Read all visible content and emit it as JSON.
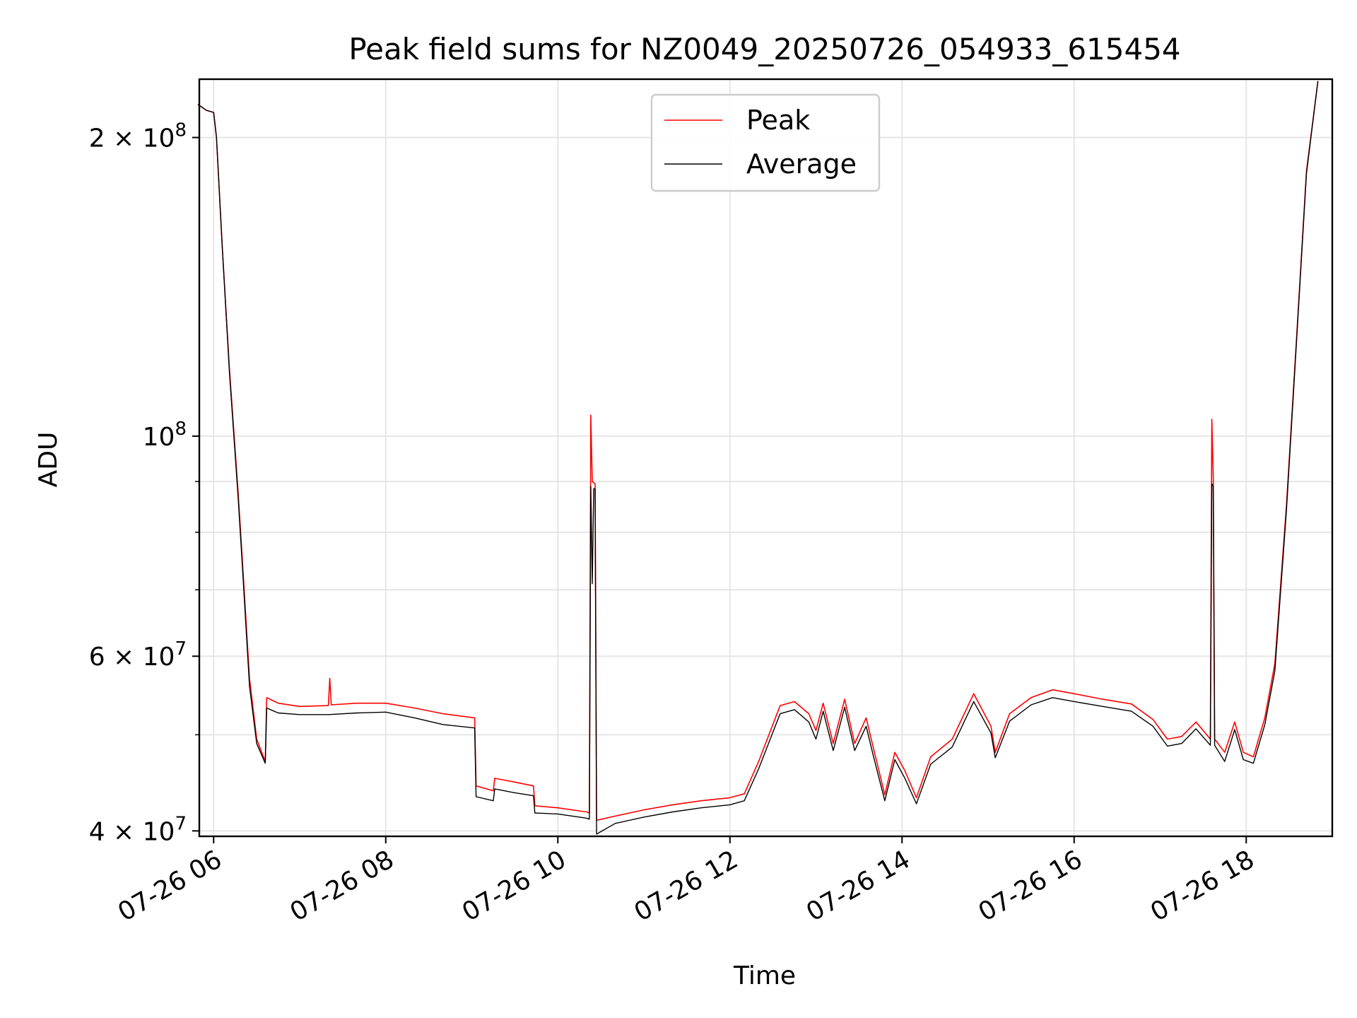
{
  "chart_data": {
    "type": "line",
    "title": "Peak field sums for NZ0049_20250726_054933_615454",
    "xlabel": "Time",
    "ylabel": "ADU",
    "yscale": "log",
    "grid": true,
    "legend_position": "upper center",
    "xlim": [
      "2025-07-26 05:50",
      "2025-07-26 19:00"
    ],
    "ylim": [
      39500000,
      229000000
    ],
    "x_ticks": [
      {
        "value": "2025-07-26 06:00",
        "label": "07-26 06"
      },
      {
        "value": "2025-07-26 08:00",
        "label": "07-26 08"
      },
      {
        "value": "2025-07-26 10:00",
        "label": "07-26 10"
      },
      {
        "value": "2025-07-26 12:00",
        "label": "07-26 12"
      },
      {
        "value": "2025-07-26 14:00",
        "label": "07-26 14"
      },
      {
        "value": "2025-07-26 16:00",
        "label": "07-26 16"
      },
      {
        "value": "2025-07-26 18:00",
        "label": "07-26 18"
      }
    ],
    "y_major_ticks": [
      {
        "value": 40000000,
        "base": "4 × 10",
        "exp": "7"
      },
      {
        "value": 60000000,
        "base": "6 × 10",
        "exp": "7"
      },
      {
        "value": 100000000,
        "base": "10",
        "exp": "8"
      },
      {
        "value": 200000000,
        "base": "2 × 10",
        "exp": "8"
      }
    ],
    "y_minor_ticks": [
      50000000,
      70000000,
      80000000,
      90000000
    ],
    "series": [
      {
        "name": "Peak",
        "color": "#ff0000",
        "points": [
          [
            "2025-07-26 05:49",
            216000000
          ],
          [
            "2025-07-26 05:55",
            213000000
          ],
          [
            "2025-07-26 06:00",
            212000000
          ],
          [
            "2025-07-26 06:02",
            200000000
          ],
          [
            "2025-07-26 06:06",
            155000000
          ],
          [
            "2025-07-26 06:11",
            117000000
          ],
          [
            "2025-07-26 06:17",
            88000000
          ],
          [
            "2025-07-26 06:20",
            75000000
          ],
          [
            "2025-07-26 06:25",
            57000000
          ],
          [
            "2025-07-26 06:30",
            49500000
          ],
          [
            "2025-07-26 06:36",
            47000000
          ],
          [
            "2025-07-26 06:37",
            54500000
          ],
          [
            "2025-07-26 06:45",
            53800000
          ],
          [
            "2025-07-26 07:00",
            53400000
          ],
          [
            "2025-07-26 07:20",
            53500000
          ],
          [
            "2025-07-26 07:21",
            57000000
          ],
          [
            "2025-07-26 07:22",
            53600000
          ],
          [
            "2025-07-26 07:40",
            53800000
          ],
          [
            "2025-07-26 08:00",
            53800000
          ],
          [
            "2025-07-26 08:20",
            53200000
          ],
          [
            "2025-07-26 08:40",
            52500000
          ],
          [
            "2025-07-26 09:02",
            52000000
          ],
          [
            "2025-07-26 09:03",
            44400000
          ],
          [
            "2025-07-26 09:15",
            43900000
          ],
          [
            "2025-07-26 09:16",
            45200000
          ],
          [
            "2025-07-26 09:30",
            44800000
          ],
          [
            "2025-07-26 09:43",
            44400000
          ],
          [
            "2025-07-26 09:44",
            42400000
          ],
          [
            "2025-07-26 10:00",
            42200000
          ],
          [
            "2025-07-26 10:20",
            41800000
          ],
          [
            "2025-07-26 10:22",
            41700000
          ],
          [
            "2025-07-26 10:23",
            105000000
          ],
          [
            "2025-07-26 10:24",
            90000000
          ],
          [
            "2025-07-26 10:26",
            89500000
          ],
          [
            "2025-07-26 10:27",
            41000000
          ],
          [
            "2025-07-26 10:40",
            41400000
          ],
          [
            "2025-07-26 11:00",
            42000000
          ],
          [
            "2025-07-26 11:20",
            42500000
          ],
          [
            "2025-07-26 11:40",
            42900000
          ],
          [
            "2025-07-26 12:00",
            43200000
          ],
          [
            "2025-07-26 12:10",
            43600000
          ],
          [
            "2025-07-26 12:20",
            47000000
          ],
          [
            "2025-07-26 12:35",
            53500000
          ],
          [
            "2025-07-26 12:45",
            54000000
          ],
          [
            "2025-07-26 12:55",
            52500000
          ],
          [
            "2025-07-26 13:00",
            50500000
          ],
          [
            "2025-07-26 13:05",
            53800000
          ],
          [
            "2025-07-26 13:12",
            49000000
          ],
          [
            "2025-07-26 13:20",
            54300000
          ],
          [
            "2025-07-26 13:27",
            49000000
          ],
          [
            "2025-07-26 13:35",
            52000000
          ],
          [
            "2025-07-26 13:40",
            48500000
          ],
          [
            "2025-07-26 13:48",
            43500000
          ],
          [
            "2025-07-26 13:55",
            48000000
          ],
          [
            "2025-07-26 14:02",
            46000000
          ],
          [
            "2025-07-26 14:10",
            43200000
          ],
          [
            "2025-07-26 14:20",
            47500000
          ],
          [
            "2025-07-26 14:35",
            49500000
          ],
          [
            "2025-07-26 14:50",
            55000000
          ],
          [
            "2025-07-26 15:02",
            51000000
          ],
          [
            "2025-07-26 15:05",
            48000000
          ],
          [
            "2025-07-26 15:15",
            52500000
          ],
          [
            "2025-07-26 15:30",
            54500000
          ],
          [
            "2025-07-26 15:45",
            55500000
          ],
          [
            "2025-07-26 16:00",
            55000000
          ],
          [
            "2025-07-26 16:20",
            54300000
          ],
          [
            "2025-07-26 16:40",
            53700000
          ],
          [
            "2025-07-26 16:55",
            51800000
          ],
          [
            "2025-07-26 17:05",
            49500000
          ],
          [
            "2025-07-26 17:15",
            49800000
          ],
          [
            "2025-07-26 17:25",
            51500000
          ],
          [
            "2025-07-26 17:35",
            49500000
          ],
          [
            "2025-07-26 17:36",
            104000000
          ],
          [
            "2025-07-26 17:37",
            91000000
          ],
          [
            "2025-07-26 17:38",
            49500000
          ],
          [
            "2025-07-26 17:45",
            48000000
          ],
          [
            "2025-07-26 17:52",
            51500000
          ],
          [
            "2025-07-26 17:58",
            48000000
          ],
          [
            "2025-07-26 18:05",
            47500000
          ],
          [
            "2025-07-26 18:13",
            52000000
          ],
          [
            "2025-07-26 18:20",
            59000000
          ],
          [
            "2025-07-26 18:28",
            85000000
          ],
          [
            "2025-07-26 18:35",
            125000000
          ],
          [
            "2025-07-26 18:42",
            185000000
          ],
          [
            "2025-07-26 18:50",
            228000000
          ]
        ]
      },
      {
        "name": "Average",
        "color": "#000000",
        "points": [
          [
            "2025-07-26 05:49",
            216000000
          ],
          [
            "2025-07-26 05:55",
            213000000
          ],
          [
            "2025-07-26 06:00",
            212000000
          ],
          [
            "2025-07-26 06:02",
            200000000
          ],
          [
            "2025-07-26 06:06",
            155000000
          ],
          [
            "2025-07-26 06:11",
            116000000
          ],
          [
            "2025-07-26 06:17",
            87000000
          ],
          [
            "2025-07-26 06:20",
            74000000
          ],
          [
            "2025-07-26 06:25",
            56000000
          ],
          [
            "2025-07-26 06:30",
            49000000
          ],
          [
            "2025-07-26 06:36",
            46800000
          ],
          [
            "2025-07-26 06:37",
            53200000
          ],
          [
            "2025-07-26 06:45",
            52600000
          ],
          [
            "2025-07-26 07:00",
            52400000
          ],
          [
            "2025-07-26 07:20",
            52400000
          ],
          [
            "2025-07-26 07:40",
            52600000
          ],
          [
            "2025-07-26 08:00",
            52700000
          ],
          [
            "2025-07-26 08:20",
            52000000
          ],
          [
            "2025-07-26 08:40",
            51200000
          ],
          [
            "2025-07-26 09:02",
            50800000
          ],
          [
            "2025-07-26 09:03",
            43300000
          ],
          [
            "2025-07-26 09:15",
            42900000
          ],
          [
            "2025-07-26 09:16",
            44100000
          ],
          [
            "2025-07-26 09:30",
            43700000
          ],
          [
            "2025-07-26 09:43",
            43400000
          ],
          [
            "2025-07-26 09:44",
            41700000
          ],
          [
            "2025-07-26 10:00",
            41600000
          ],
          [
            "2025-07-26 10:20",
            41200000
          ],
          [
            "2025-07-26 10:22",
            41100000
          ],
          [
            "2025-07-26 10:23",
            89000000
          ],
          [
            "2025-07-26 10:24",
            71000000
          ],
          [
            "2025-07-26 10:25",
            88500000
          ],
          [
            "2025-07-26 10:26",
            88500000
          ],
          [
            "2025-07-26 10:27",
            39700000
          ],
          [
            "2025-07-26 10:40",
            40700000
          ],
          [
            "2025-07-26 11:00",
            41300000
          ],
          [
            "2025-07-26 11:20",
            41800000
          ],
          [
            "2025-07-26 11:40",
            42200000
          ],
          [
            "2025-07-26 12:00",
            42500000
          ],
          [
            "2025-07-26 12:10",
            42900000
          ],
          [
            "2025-07-26 12:20",
            46200000
          ],
          [
            "2025-07-26 12:35",
            52500000
          ],
          [
            "2025-07-26 12:45",
            53000000
          ],
          [
            "2025-07-26 12:55",
            51500000
          ],
          [
            "2025-07-26 13:00",
            49500000
          ],
          [
            "2025-07-26 13:05",
            52800000
          ],
          [
            "2025-07-26 13:12",
            48200000
          ],
          [
            "2025-07-26 13:20",
            53300000
          ],
          [
            "2025-07-26 13:27",
            48200000
          ],
          [
            "2025-07-26 13:35",
            51000000
          ],
          [
            "2025-07-26 13:40",
            47600000
          ],
          [
            "2025-07-26 13:48",
            42900000
          ],
          [
            "2025-07-26 13:55",
            47200000
          ],
          [
            "2025-07-26 14:02",
            45200000
          ],
          [
            "2025-07-26 14:10",
            42600000
          ],
          [
            "2025-07-26 14:20",
            46700000
          ],
          [
            "2025-07-26 14:35",
            48600000
          ],
          [
            "2025-07-26 14:50",
            54000000
          ],
          [
            "2025-07-26 15:02",
            50200000
          ],
          [
            "2025-07-26 15:05",
            47400000
          ],
          [
            "2025-07-26 15:15",
            51600000
          ],
          [
            "2025-07-26 15:30",
            53600000
          ],
          [
            "2025-07-26 15:45",
            54500000
          ],
          [
            "2025-07-26 16:00",
            54000000
          ],
          [
            "2025-07-26 16:20",
            53400000
          ],
          [
            "2025-07-26 16:40",
            52800000
          ],
          [
            "2025-07-26 16:55",
            51000000
          ],
          [
            "2025-07-26 17:05",
            48700000
          ],
          [
            "2025-07-26 17:15",
            49000000
          ],
          [
            "2025-07-26 17:25",
            50700000
          ],
          [
            "2025-07-26 17:35",
            48800000
          ],
          [
            "2025-07-26 17:36",
            89500000
          ],
          [
            "2025-07-26 17:37",
            89000000
          ],
          [
            "2025-07-26 17:38",
            48800000
          ],
          [
            "2025-07-26 17:45",
            47000000
          ],
          [
            "2025-07-26 17:52",
            50600000
          ],
          [
            "2025-07-26 17:58",
            47200000
          ],
          [
            "2025-07-26 18:05",
            46800000
          ],
          [
            "2025-07-26 18:13",
            51200000
          ],
          [
            "2025-07-26 18:20",
            58000000
          ],
          [
            "2025-07-26 18:28",
            84000000
          ],
          [
            "2025-07-26 18:35",
            124000000
          ],
          [
            "2025-07-26 18:42",
            184000000
          ],
          [
            "2025-07-26 18:50",
            228000000
          ]
        ]
      }
    ]
  }
}
